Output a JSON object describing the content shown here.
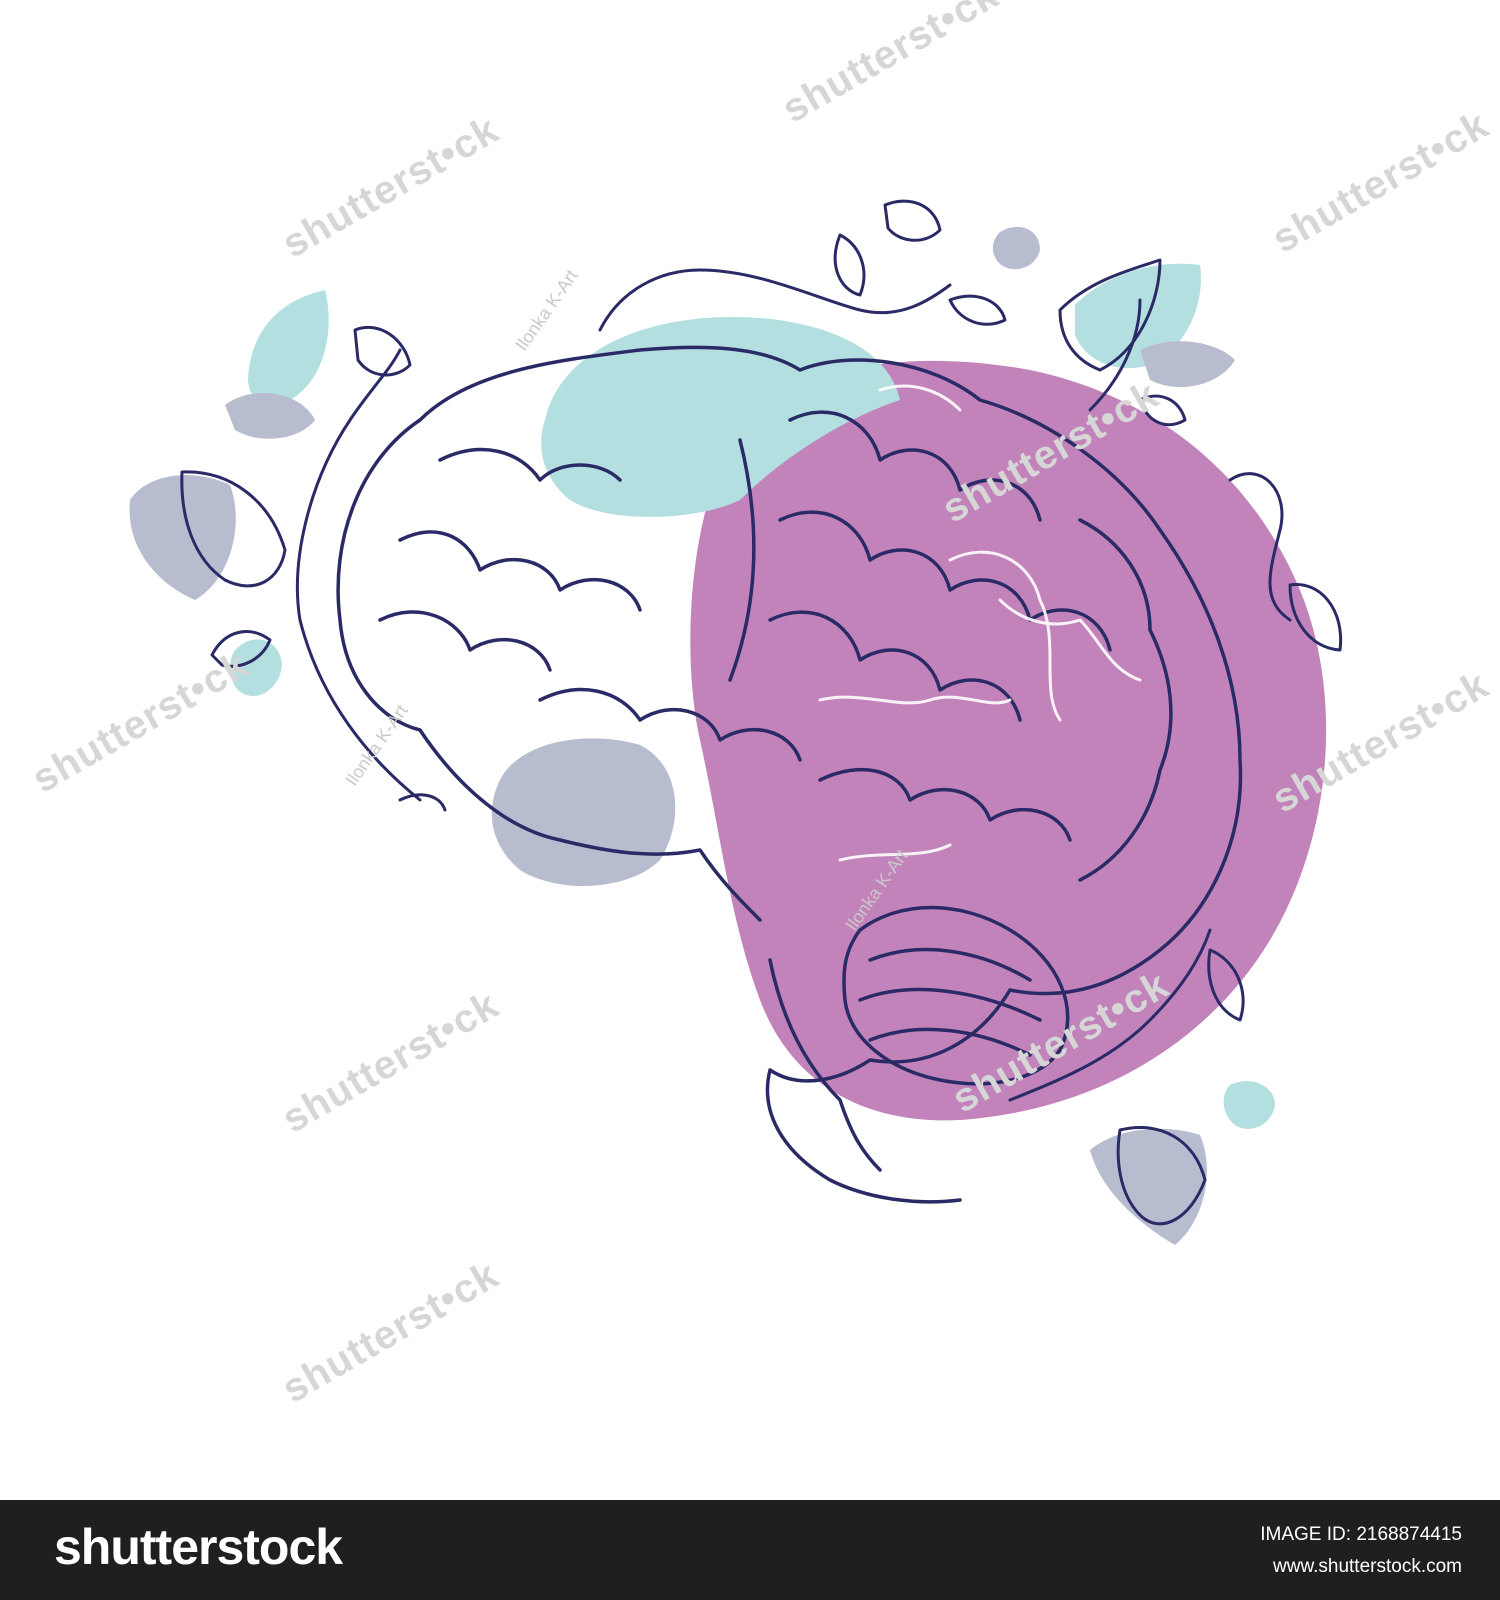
{
  "watermark": {
    "brand_text": "shutterst•ck",
    "author_text": "Ilonka K-Art"
  },
  "footer": {
    "logo_text": "shutterstock",
    "image_id_label": "IMAGE ID: 2168874415",
    "site_url": "www.shutterstock.com"
  },
  "colors": {
    "line": "#2a2a66",
    "purple_blob": "#c283bb",
    "teal_blob": "#b3dfe0",
    "slate_blob": "#b8bccf",
    "footer_bg": "#1f1f1f"
  }
}
